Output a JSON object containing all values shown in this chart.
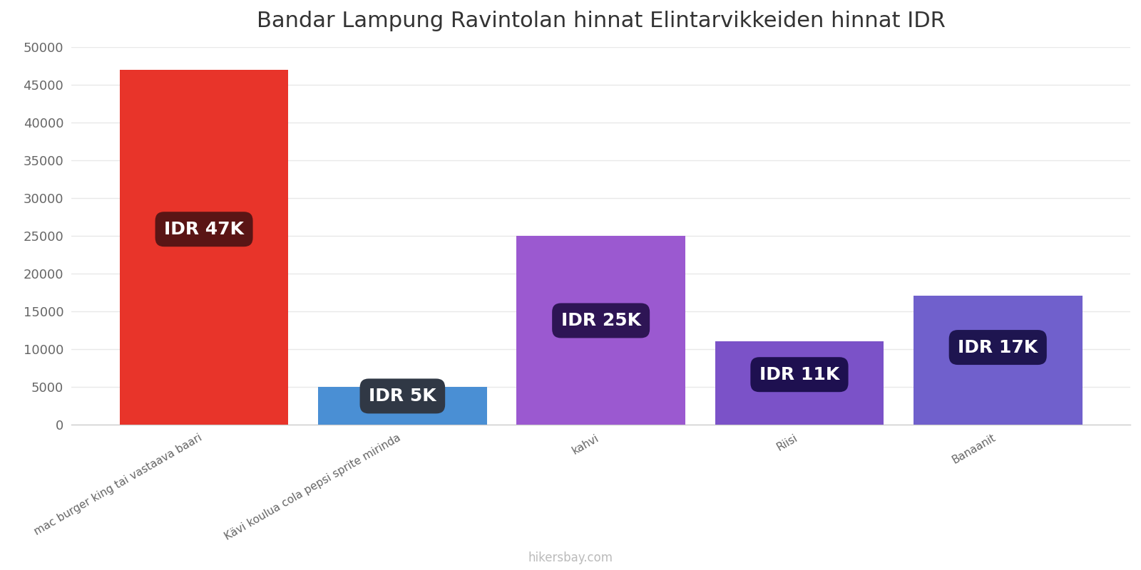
{
  "title": "Bandar Lampung Ravintolan hinnat Elintarvikkeiden hinnat IDR",
  "categories": [
    "mac burger king tai vastaava baari",
    "Kävi koulua cola pepsi sprite mirinda",
    "kahvi",
    "Riisi",
    "Banaanit"
  ],
  "values": [
    47000,
    5000,
    25000,
    11000,
    17000
  ],
  "bar_colors": [
    "#e8342a",
    "#4a8fd4",
    "#9b59d0",
    "#7b52c8",
    "#7060cc"
  ],
  "labels": [
    "IDR 47K",
    "IDR 5K",
    "IDR 25K",
    "IDR 11K",
    "IDR 17K"
  ],
  "label_bg_colors": [
    "#5a1515",
    "#303845",
    "#2e1555",
    "#1e1050",
    "#1e1550"
  ],
  "ylim": [
    0,
    50000
  ],
  "yticks": [
    0,
    5000,
    10000,
    15000,
    20000,
    25000,
    30000,
    35000,
    40000,
    45000,
    50000
  ],
  "title_fontsize": 22,
  "label_fontsize": 18,
  "tick_fontsize": 13,
  "watermark": "hikersbay.com",
  "background_color": "#ffffff",
  "grid_color": "#e8e8e8"
}
